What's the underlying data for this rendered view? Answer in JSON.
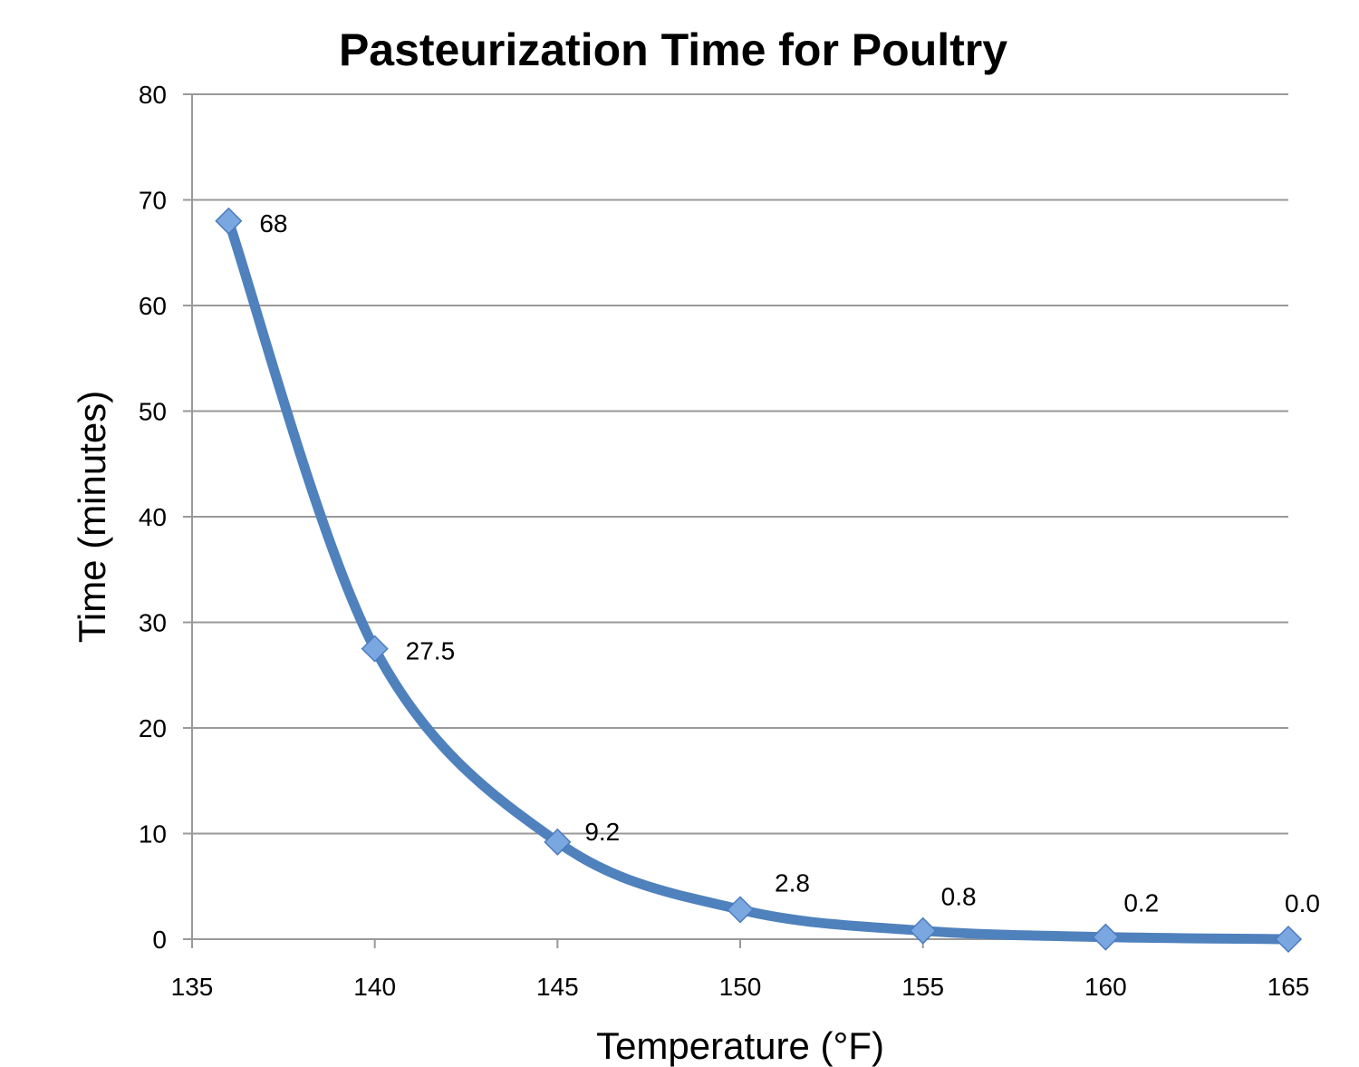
{
  "chart_data": {
    "type": "line",
    "title": "Pasteurization Time for Poultry",
    "xlabel": "Temperature (°F)",
    "ylabel": "Time (minutes)",
    "xlim": [
      135,
      165
    ],
    "ylim": [
      0,
      80
    ],
    "xticks": [
      135,
      140,
      145,
      150,
      155,
      160,
      165
    ],
    "yticks": [
      0,
      10,
      20,
      30,
      40,
      50,
      60,
      70,
      80
    ],
    "grid": "horizontal",
    "smooth": true,
    "marker": "diamond",
    "color": "#4f81bd",
    "marker_color": "#7ba7e0",
    "series": [
      {
        "x": [
          136,
          140,
          145,
          150,
          155,
          160,
          165
        ],
        "y": [
          68,
          27.5,
          9.2,
          2.8,
          0.8,
          0.2,
          0.0
        ],
        "labels": [
          "68",
          "27.5",
          "9.2",
          "2.8",
          "0.8",
          "0.2",
          "0.0"
        ]
      }
    ]
  }
}
